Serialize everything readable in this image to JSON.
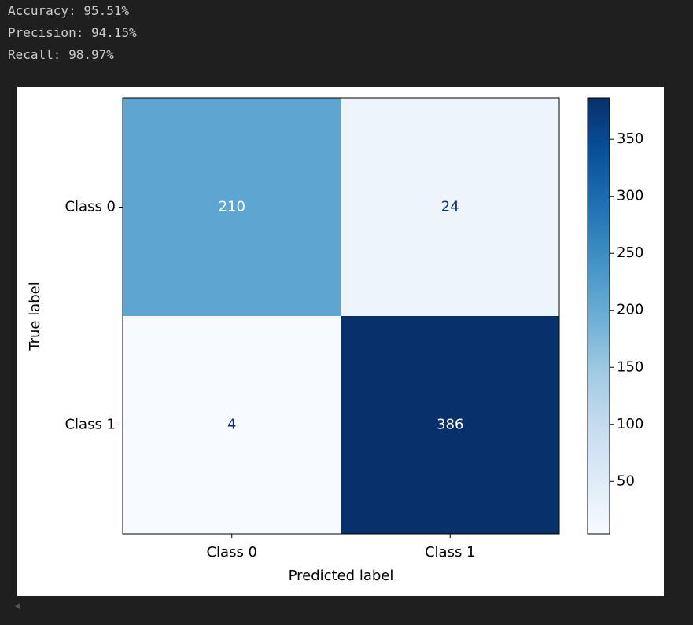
{
  "output_lines": [
    "Accuracy: 95.51%",
    "Precision: 94.15%",
    "Recall: 98.97%"
  ],
  "chart_data": {
    "type": "heatmap",
    "x_categories": [
      "Class 0",
      "Class 1"
    ],
    "y_categories": [
      "Class 0",
      "Class 1"
    ],
    "values": [
      [
        210,
        24
      ],
      [
        4,
        386
      ]
    ],
    "xlabel": "Predicted label",
    "ylabel": "True label",
    "colormap": "Blues",
    "zlim": [
      4,
      386
    ],
    "zticks": [
      50,
      100,
      150,
      200,
      250,
      300,
      350
    ]
  }
}
